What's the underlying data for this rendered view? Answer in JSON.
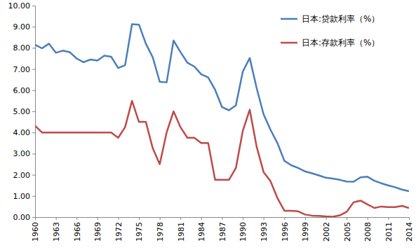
{
  "chart_data": {
    "type": "line",
    "x": [
      1960,
      1961,
      1962,
      1963,
      1964,
      1965,
      1966,
      1967,
      1968,
      1969,
      1970,
      1971,
      1972,
      1973,
      1974,
      1975,
      1976,
      1977,
      1978,
      1979,
      1980,
      1981,
      1982,
      1983,
      1984,
      1985,
      1986,
      1987,
      1988,
      1989,
      1990,
      1991,
      1992,
      1993,
      1994,
      1995,
      1996,
      1997,
      1998,
      1999,
      2000,
      2001,
      2002,
      2003,
      2004,
      2005,
      2006,
      2007,
      2008,
      2009,
      2010,
      2011,
      2012,
      2013,
      2014
    ],
    "series": [
      {
        "name": "日本:贷款利率（%）",
        "color": "#4a7ebb",
        "values": [
          8.15,
          7.98,
          8.2,
          7.77,
          7.87,
          7.8,
          7.5,
          7.32,
          7.45,
          7.4,
          7.63,
          7.58,
          7.05,
          7.18,
          9.12,
          9.1,
          8.2,
          7.55,
          6.4,
          6.37,
          8.35,
          7.8,
          7.3,
          7.12,
          6.75,
          6.6,
          6.02,
          5.2,
          5.05,
          5.28,
          6.88,
          7.52,
          6.1,
          4.86,
          4.13,
          3.5,
          2.66,
          2.45,
          2.32,
          2.16,
          2.07,
          1.97,
          1.86,
          1.82,
          1.76,
          1.68,
          1.67,
          1.88,
          1.91,
          1.72,
          1.6,
          1.5,
          1.41,
          1.3,
          1.22
        ]
      },
      {
        "name": "日本:存款利率（%）",
        "color": "#be4b48",
        "values": [
          4.32,
          4.0,
          4.0,
          4.0,
          4.0,
          4.0,
          4.0,
          4.0,
          4.0,
          4.0,
          4.0,
          4.0,
          3.75,
          4.25,
          5.5,
          4.5,
          4.5,
          3.25,
          2.5,
          4.0,
          5.0,
          4.25,
          3.75,
          3.75,
          3.5,
          3.5,
          1.76,
          1.76,
          1.76,
          2.32,
          4.08,
          5.08,
          3.33,
          2.13,
          1.7,
          0.9,
          0.3,
          0.3,
          0.27,
          0.12,
          0.07,
          0.06,
          0.03,
          0.02,
          0.08,
          0.25,
          0.7,
          0.78,
          0.6,
          0.43,
          0.5,
          0.47,
          0.47,
          0.53,
          0.43
        ]
      }
    ],
    "xlim": [
      1960,
      2014
    ],
    "xticks": [
      1960,
      1963,
      1966,
      1969,
      1972,
      1975,
      1978,
      1981,
      1984,
      1987,
      1990,
      1993,
      1996,
      1999,
      2002,
      2005,
      2008,
      2011,
      2014
    ],
    "ylim": [
      0,
      10
    ],
    "yticks": [
      {
        "value": 0,
        "label": "0.00"
      },
      {
        "value": 1,
        "label": "1.00"
      },
      {
        "value": 2,
        "label": "2.00"
      },
      {
        "value": 3,
        "label": "3.00"
      },
      {
        "value": 4,
        "label": "4.00"
      },
      {
        "value": 5,
        "label": "5.00"
      },
      {
        "value": 6,
        "label": "6.00"
      },
      {
        "value": 7,
        "label": "7.00"
      },
      {
        "value": 8,
        "label": "8.00"
      },
      {
        "value": 9,
        "label": "9.00"
      },
      {
        "value": 10,
        "label": "10.00"
      }
    ],
    "grid": false,
    "legend": "top-right"
  }
}
